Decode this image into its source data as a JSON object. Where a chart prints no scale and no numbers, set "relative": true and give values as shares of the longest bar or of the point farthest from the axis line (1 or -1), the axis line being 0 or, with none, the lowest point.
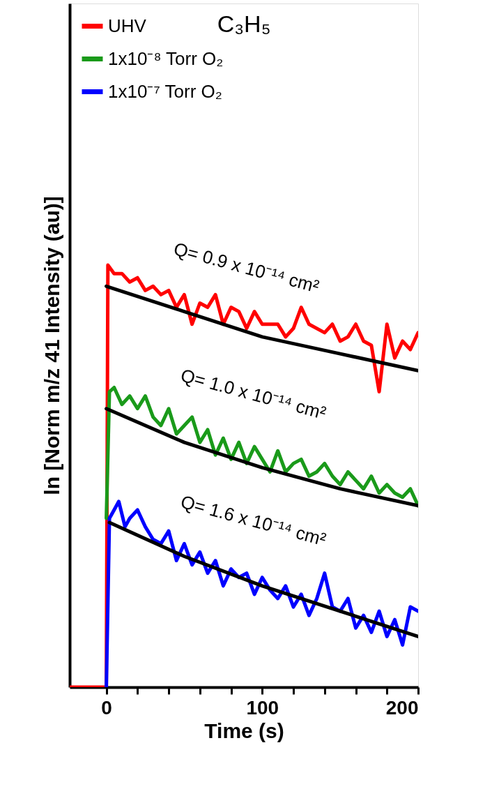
{
  "chart_data": {
    "type": "line",
    "title": "C₃H₅",
    "xlabel": "Time (s)",
    "ylabel": "ln [Norm m/z 41 Intensity (au)]",
    "relative": true,
    "xlim": [
      -23.5,
      200
    ],
    "xticks": [
      0,
      {
        "value": 20,
        "label": null
      },
      {
        "value": 40,
        "label": null
      },
      {
        "value": 60,
        "label": null
      },
      {
        "value": 80,
        "label": null
      },
      100,
      {
        "value": 120,
        "label": null
      },
      {
        "value": 140,
        "label": null
      },
      {
        "value": 160,
        "label": null
      },
      {
        "value": 180,
        "label": null
      },
      200
    ],
    "grid": false,
    "legend": "top left",
    "line_style": "solid",
    "series": [
      {
        "name": "UHV",
        "color": "#ff0000",
        "x": [
          -23.5,
          0,
          1,
          5,
          10,
          15,
          20,
          25,
          30,
          35,
          40,
          45,
          50,
          55,
          60,
          65,
          70,
          75,
          80,
          85,
          90,
          95,
          100,
          110,
          115,
          120,
          125,
          130,
          140,
          145,
          150,
          155,
          160,
          165,
          170,
          175,
          180,
          185,
          190,
          195,
          200
        ],
        "values": [
          0,
          0,
          1.0,
          0.98,
          0.98,
          0.96,
          0.97,
          0.94,
          0.95,
          0.93,
          0.94,
          0.9,
          0.93,
          0.86,
          0.91,
          0.9,
          0.93,
          0.86,
          0.9,
          0.89,
          0.85,
          0.89,
          0.86,
          0.86,
          0.83,
          0.85,
          0.9,
          0.86,
          0.84,
          0.86,
          0.82,
          0.83,
          0.86,
          0.82,
          0.81,
          0.7,
          0.86,
          0.78,
          0.82,
          0.8,
          0.84
        ]
      },
      {
        "name": "1x10⁻⁸ Torr O₂",
        "color": "#1a9a1a",
        "x": [
          0,
          2,
          5,
          10,
          15,
          20,
          25,
          30,
          35,
          40,
          45,
          50,
          55,
          60,
          65,
          70,
          75,
          80,
          85,
          90,
          95,
          100,
          105,
          110,
          115,
          120,
          125,
          130,
          135,
          140,
          145,
          150,
          155,
          160,
          165,
          170,
          175,
          180,
          185,
          190,
          195,
          200
        ],
        "values": [
          0.4,
          0.7,
          0.71,
          0.67,
          0.69,
          0.66,
          0.69,
          0.64,
          0.62,
          0.66,
          0.6,
          0.62,
          0.64,
          0.58,
          0.61,
          0.55,
          0.59,
          0.54,
          0.58,
          0.53,
          0.57,
          0.54,
          0.51,
          0.56,
          0.51,
          0.53,
          0.54,
          0.5,
          0.51,
          0.53,
          0.5,
          0.48,
          0.51,
          0.49,
          0.47,
          0.5,
          0.46,
          0.48,
          0.46,
          0.45,
          0.47,
          0.43
        ]
      },
      {
        "name": "1x10⁻⁷ Torr O₂",
        "color": "#0000ff",
        "x": [
          0,
          2,
          5,
          8,
          12,
          15,
          20,
          25,
          30,
          35,
          40,
          45,
          50,
          55,
          60,
          65,
          70,
          75,
          80,
          85,
          90,
          95,
          100,
          105,
          110,
          115,
          120,
          125,
          130,
          135,
          140,
          145,
          150,
          155,
          160,
          165,
          170,
          175,
          180,
          185,
          190,
          195,
          200
        ],
        "values": [
          0,
          0.4,
          0.42,
          0.44,
          0.38,
          0.4,
          0.42,
          0.38,
          0.35,
          0.34,
          0.37,
          0.3,
          0.34,
          0.29,
          0.32,
          0.27,
          0.3,
          0.24,
          0.28,
          0.26,
          0.27,
          0.22,
          0.26,
          0.23,
          0.21,
          0.24,
          0.19,
          0.22,
          0.17,
          0.21,
          0.27,
          0.19,
          0.18,
          0.21,
          0.14,
          0.17,
          0.13,
          0.18,
          0.12,
          0.16,
          0.1,
          0.19,
          0.18
        ]
      },
      {
        "color": "#000000",
        "x": [
          0,
          50,
          100,
          150,
          200
        ],
        "values": [
          0.95,
          0.89,
          0.83,
          0.79,
          0.75
        ]
      },
      {
        "color": "#000000",
        "x": [
          0,
          50,
          100,
          150,
          200
        ],
        "values": [
          0.66,
          0.58,
          0.52,
          0.47,
          0.43
        ]
      },
      {
        "color": "#000000",
        "x": [
          2,
          50,
          100,
          150,
          200
        ],
        "values": [
          0.39,
          0.31,
          0.24,
          0.18,
          0.12
        ]
      }
    ],
    "annotations": [
      "Q= 0.9 x 10⁻¹⁴ cm²",
      "Q= 1.0 x 10⁻¹⁴ cm²",
      "Q= 1.6 x 10⁻¹⁴ cm²"
    ]
  }
}
